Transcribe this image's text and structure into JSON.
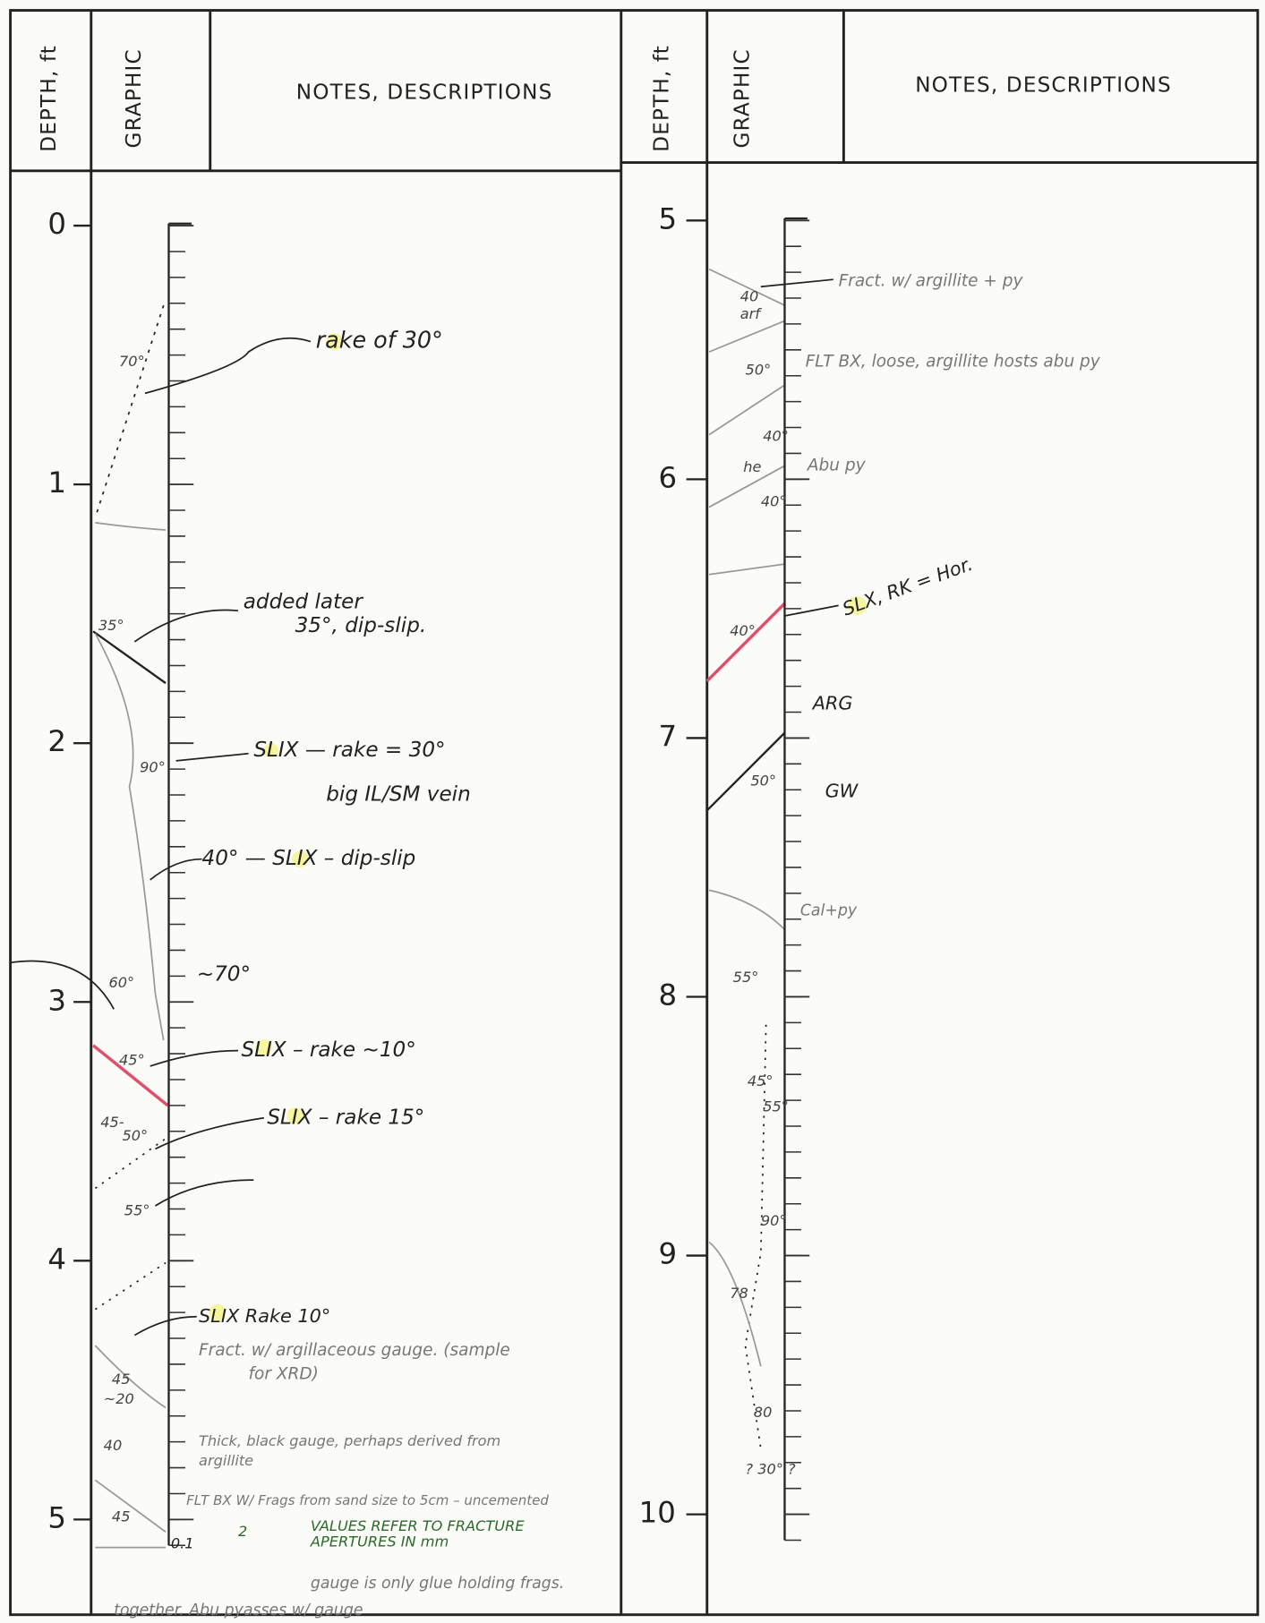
{
  "panels": [
    {
      "headers": {
        "depth": "DEPTH, ft",
        "graphic": "GRAPHIC",
        "notes": "NOTES, DESCRIPTIONS"
      },
      "depths": [
        0,
        1,
        2,
        3,
        4,
        5
      ],
      "notes": [
        "rake of 30°",
        "added later",
        "35°, dip-slip.",
        "SLIX — rake = 30°",
        "big IL/SM vein",
        "40° — SLIX – dip-slip",
        "~70°",
        "SLIX – rake ~10°",
        "SLIX – rake 15°",
        "SLIX Rake 10°",
        "Fract. w/ argillaceous gauge. (sample",
        "for XRD)",
        "Thick, black gauge, perhaps derived from",
        "argillite",
        "FLT BX W/ Frags from sand size to 5cm – uncemented",
        "VALUES REFER TO FRACTURE",
        "APERTURES IN mm",
        "0.1",
        "2",
        "gauge is only glue holding frags.",
        "together. Abu pyasses w/ gauge"
      ],
      "angles": [
        "70°",
        "35°",
        "90°",
        "60°",
        "45°",
        "45-",
        "50°",
        "55°",
        "45",
        "~20",
        "40",
        "45"
      ]
    },
    {
      "headers": {
        "depth": "DEPTH, ft",
        "graphic": "GRAPHIC",
        "notes": "NOTES, DESCRIPTIONS"
      },
      "depths": [
        5,
        6,
        7,
        8,
        9,
        10
      ],
      "notes": [
        "Fract. w/ argillite + py",
        "FLT BX, loose, argillite hosts abu py",
        "Abu py",
        "SLX, RK = Hor.",
        "ARG",
        "GW",
        "Cal+py"
      ],
      "angles": [
        "40",
        "arf",
        "50°",
        "40°",
        "he",
        "40°",
        "40°",
        "50°",
        "55°",
        "45°",
        "55°",
        "90°",
        "78",
        "80",
        "? 30° ?"
      ]
    }
  ]
}
